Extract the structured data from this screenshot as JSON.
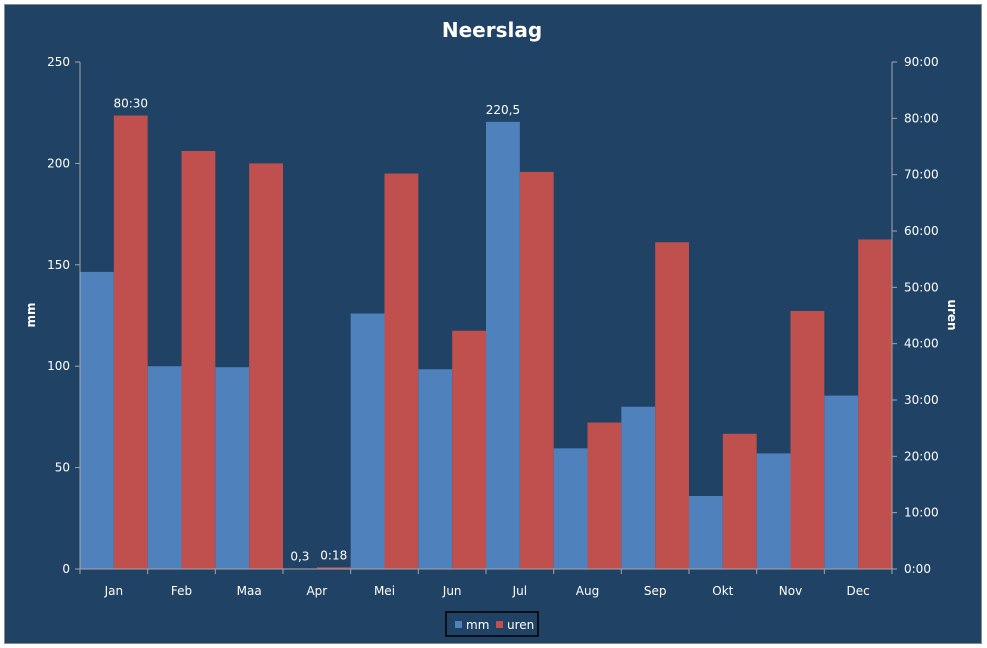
{
  "chart_data": {
    "type": "bar",
    "title": "Neerslag",
    "ylabel": "mm",
    "y2label": "uren",
    "categories": [
      "Jan",
      "Feb",
      "Maa",
      "Apr",
      "Mei",
      "Jun",
      "Jul",
      "Aug",
      "Sep",
      "Okt",
      "Nov",
      "Dec"
    ],
    "ylim": [
      0,
      250
    ],
    "yticks": [
      "0",
      "50",
      "100",
      "150",
      "200",
      "250"
    ],
    "y2lim_hours": [
      0,
      90
    ],
    "y2ticks": [
      "0:00",
      "10:00",
      "20:00",
      "30:00",
      "40:00",
      "50:00",
      "60:00",
      "70:00",
      "80:00",
      "90:00"
    ],
    "series": [
      {
        "name": "mm",
        "axis": "left",
        "color": "#4f81bd",
        "values": [
          146.5,
          100,
          99.5,
          0.3,
          126,
          98.5,
          220.5,
          59.5,
          80,
          36,
          57,
          85.5
        ],
        "labels": [
          "",
          "",
          "",
          "0,3",
          "",
          "",
          "220,5",
          "",
          "",
          "",
          "",
          ""
        ]
      },
      {
        "name": "uren",
        "axis": "right",
        "color": "#c0504d",
        "values_hours": [
          80.5,
          74.2,
          72,
          0.3,
          70.2,
          42.3,
          70.5,
          26,
          58,
          24,
          45.8,
          58.5
        ],
        "labels": [
          "80:30",
          "",
          "",
          "0:18",
          "",
          "",
          "",
          "",
          "",
          "",
          "",
          ""
        ]
      }
    ],
    "grid": false,
    "legend_position": "bottom"
  }
}
